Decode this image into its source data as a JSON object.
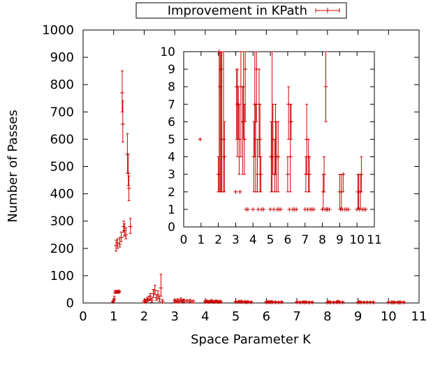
{
  "chart_data": [
    {
      "type": "scatter",
      "role": "main",
      "xlabel": "Space Parameter K",
      "ylabel": "Number of Passes",
      "xlim": [
        0,
        11
      ],
      "ylim": [
        0,
        1000
      ],
      "xticks": [
        0,
        1,
        2,
        3,
        4,
        5,
        6,
        7,
        8,
        9,
        10,
        11
      ],
      "yticks": [
        0,
        100,
        200,
        300,
        400,
        500,
        600,
        700,
        800,
        900,
        1000
      ],
      "error_bars": true,
      "legend": "top-center",
      "series": [
        {
          "name": "Improvement in KPath",
          "color": "#cc0000",
          "points": [
            [
              0.98,
              5,
              3,
              8
            ],
            [
              1.02,
              15,
              10,
              25
            ],
            [
              1.05,
              40,
              35,
              45
            ],
            [
              1.1,
              42,
              38,
              46
            ],
            [
              1.15,
              40,
              36,
              44
            ],
            [
              1.18,
              42,
              38,
              46
            ],
            [
              1.08,
              210,
              190,
              230
            ],
            [
              1.13,
              220,
              200,
              235
            ],
            [
              1.2,
              215,
              205,
              240
            ],
            [
              1.25,
              240,
              225,
              260
            ],
            [
              1.28,
              770,
              700,
              850
            ],
            [
              1.3,
              655,
              590,
              740
            ],
            [
              1.33,
              280,
              260,
              300
            ],
            [
              1.35,
              265,
              245,
              290
            ],
            [
              1.4,
              250,
              235,
              275
            ],
            [
              1.45,
              545,
              475,
              620
            ],
            [
              1.48,
              475,
              430,
              545
            ],
            [
              1.5,
              420,
              375,
              465
            ],
            [
              1.55,
              280,
              255,
              310
            ],
            [
              2.0,
              5,
              0,
              10
            ],
            [
              2.05,
              8,
              2,
              14
            ],
            [
              2.1,
              12,
              5,
              20
            ],
            [
              2.15,
              15,
              8,
              25
            ],
            [
              2.2,
              25,
              12,
              35
            ],
            [
              2.25,
              10,
              3,
              18
            ],
            [
              2.3,
              35,
              20,
              50
            ],
            [
              2.35,
              45,
              30,
              65
            ],
            [
              2.4,
              20,
              10,
              30
            ],
            [
              2.45,
              30,
              15,
              45
            ],
            [
              2.5,
              15,
              5,
              25
            ],
            [
              2.55,
              55,
              25,
              105
            ],
            [
              2.6,
              5,
              0,
              12
            ],
            [
              3.0,
              8,
              2,
              12
            ],
            [
              3.05,
              6,
              0,
              10
            ],
            [
              3.1,
              10,
              3,
              15
            ],
            [
              3.15,
              5,
              0,
              10
            ],
            [
              3.2,
              12,
              5,
              18
            ],
            [
              3.25,
              7,
              2,
              12
            ],
            [
              3.3,
              9,
              3,
              14
            ],
            [
              3.4,
              6,
              0,
              12
            ],
            [
              3.5,
              8,
              3,
              13
            ],
            [
              3.6,
              5,
              0,
              10
            ],
            [
              4.0,
              5,
              2,
              8
            ],
            [
              4.05,
              6,
              2,
              10
            ],
            [
              4.1,
              4,
              1,
              7
            ],
            [
              4.15,
              5,
              2,
              8
            ],
            [
              4.2,
              7,
              3,
              11
            ],
            [
              4.25,
              5,
              2,
              8
            ],
            [
              4.3,
              4,
              1,
              7
            ],
            [
              4.35,
              6,
              2,
              10
            ],
            [
              4.4,
              5,
              2,
              8
            ],
            [
              4.45,
              4,
              1,
              7
            ],
            [
              4.5,
              5,
              2,
              8
            ],
            [
              5.0,
              4,
              1,
              7
            ],
            [
              5.1,
              5,
              2,
              8
            ],
            [
              5.15,
              4,
              1,
              7
            ],
            [
              5.2,
              5,
              2,
              8
            ],
            [
              5.3,
              4,
              1,
              7
            ],
            [
              5.35,
              3,
              1,
              6
            ],
            [
              5.4,
              4,
              1,
              7
            ],
            [
              5.5,
              3,
              1,
              6
            ],
            [
              6.0,
              3,
              1,
              6
            ],
            [
              6.05,
              4,
              1,
              7
            ],
            [
              6.1,
              3,
              1,
              6
            ],
            [
              6.15,
              4,
              1,
              7
            ],
            [
              6.2,
              3,
              1,
              6
            ],
            [
              6.3,
              3,
              1,
              6
            ],
            [
              6.4,
              2,
              1,
              5
            ],
            [
              6.5,
              3,
              1,
              6
            ],
            [
              7.0,
              3,
              1,
              6
            ],
            [
              7.1,
              2,
              1,
              5
            ],
            [
              7.2,
              3,
              1,
              6
            ],
            [
              7.25,
              2,
              1,
              5
            ],
            [
              7.3,
              3,
              1,
              6
            ],
            [
              7.4,
              2,
              1,
              5
            ],
            [
              7.5,
              2,
              1,
              5
            ],
            [
              8.0,
              2,
              1,
              5
            ],
            [
              8.05,
              3,
              1,
              6
            ],
            [
              8.1,
              2,
              1,
              5
            ],
            [
              8.2,
              2,
              1,
              5
            ],
            [
              8.3,
              3,
              1,
              6
            ],
            [
              8.35,
              5,
              2,
              8
            ],
            [
              8.4,
              2,
              1,
              5
            ],
            [
              8.5,
              2,
              1,
              5
            ],
            [
              9.0,
              2,
              1,
              5
            ],
            [
              9.05,
              3,
              1,
              6
            ],
            [
              9.1,
              2,
              1,
              5
            ],
            [
              9.2,
              2,
              1,
              5
            ],
            [
              9.3,
              2,
              1,
              5
            ],
            [
              9.4,
              2,
              1,
              5
            ],
            [
              9.5,
              2,
              1,
              5
            ],
            [
              10.0,
              2,
              1,
              5
            ],
            [
              10.1,
              2,
              1,
              5
            ],
            [
              10.15,
              2,
              1,
              5
            ],
            [
              10.2,
              2,
              1,
              5
            ],
            [
              10.3,
              2,
              1,
              5
            ],
            [
              10.35,
              2,
              1,
              5
            ],
            [
              10.4,
              2,
              1,
              5
            ],
            [
              10.5,
              2,
              1,
              5
            ]
          ]
        }
      ]
    },
    {
      "type": "scatter",
      "role": "inset",
      "xlim": [
        0,
        11
      ],
      "ylim": [
        0,
        10
      ],
      "xticks": [
        0,
        1,
        2,
        3,
        4,
        5,
        6,
        7,
        8,
        9,
        10,
        11
      ],
      "yticks": [
        0,
        1,
        2,
        3,
        4,
        5,
        6,
        7,
        8,
        9,
        10
      ],
      "error_bars": true,
      "series": [
        {
          "name": "Improvement in KPath",
          "color": "#cc0000",
          "points": [
            [
              0.95,
              5,
              5,
              5
            ],
            [
              2.0,
              3,
              2,
              4
            ],
            [
              2.05,
              10,
              2,
              10
            ],
            [
              2.1,
              8,
              2,
              10
            ],
            [
              2.15,
              9,
              2,
              10
            ],
            [
              2.2,
              5,
              2,
              10
            ],
            [
              2.3,
              5,
              2,
              10
            ],
            [
              2.35,
              4,
              2,
              6
            ],
            [
              3.0,
              2,
              2,
              2
            ],
            [
              3.05,
              8,
              5,
              9
            ],
            [
              3.1,
              7,
              4,
              9
            ],
            [
              3.15,
              7,
              5,
              8
            ],
            [
              3.2,
              5,
              3,
              7
            ],
            [
              3.25,
              2,
              2,
              2
            ],
            [
              3.3,
              8,
              4,
              10
            ],
            [
              3.4,
              6,
              3,
              8
            ],
            [
              3.45,
              8,
              5,
              10
            ],
            [
              3.5,
              5,
              3,
              7
            ],
            [
              3.55,
              9,
              6,
              10
            ],
            [
              3.6,
              1,
              1,
              1
            ],
            [
              3.7,
              1,
              1,
              1
            ],
            [
              4.0,
              1,
              1,
              1
            ],
            [
              4.05,
              4,
              2,
              6
            ],
            [
              4.1,
              7,
              4,
              10
            ],
            [
              4.15,
              5,
              2,
              7
            ],
            [
              4.2,
              9,
              6,
              10
            ],
            [
              4.25,
              3,
              2,
              5
            ],
            [
              4.3,
              1,
              1,
              1
            ],
            [
              4.35,
              7,
              4,
              9
            ],
            [
              4.4,
              5,
              2,
              7
            ],
            [
              4.45,
              3,
              2,
              4
            ],
            [
              4.5,
              1,
              1,
              1
            ],
            [
              4.6,
              1,
              1,
              1
            ],
            [
              5.0,
              1,
              1,
              1
            ],
            [
              5.05,
              4,
              2,
              6
            ],
            [
              5.1,
              4,
              2,
              10
            ],
            [
              5.15,
              5,
              3,
              7
            ],
            [
              5.2,
              1,
              1,
              1
            ],
            [
              5.25,
              3,
              2,
              5
            ],
            [
              5.3,
              6,
              3,
              7
            ],
            [
              5.35,
              4,
              2,
              6
            ],
            [
              5.4,
              1,
              1,
              1
            ],
            [
              5.45,
              4,
              2,
              6
            ],
            [
              5.5,
              1,
              1,
              1
            ],
            [
              5.6,
              1,
              1,
              1
            ],
            [
              6.0,
              3,
              2,
              4
            ],
            [
              6.05,
              7,
              5,
              8
            ],
            [
              6.1,
              1,
              1,
              1
            ],
            [
              6.15,
              4,
              2,
              7
            ],
            [
              6.2,
              6,
              5,
              7
            ],
            [
              6.3,
              1,
              1,
              1
            ],
            [
              6.4,
              1,
              1,
              1
            ],
            [
              6.5,
              1,
              1,
              1
            ],
            [
              7.0,
              1,
              1,
              1
            ],
            [
              7.05,
              3,
              2,
              4
            ],
            [
              7.1,
              5,
              3,
              7
            ],
            [
              7.15,
              1,
              1,
              1
            ],
            [
              7.2,
              4,
              2,
              5
            ],
            [
              7.25,
              3,
              2,
              4
            ],
            [
              7.3,
              1,
              1,
              1
            ],
            [
              7.4,
              1,
              1,
              1
            ],
            [
              7.5,
              1,
              1,
              1
            ],
            [
              8.0,
              1,
              1,
              1
            ],
            [
              8.05,
              2,
              1,
              3
            ],
            [
              8.1,
              3,
              2,
              4
            ],
            [
              8.15,
              1,
              1,
              1
            ],
            [
              8.2,
              8,
              6,
              10
            ],
            [
              8.25,
              1,
              1,
              1
            ],
            [
              8.3,
              1,
              1,
              1
            ],
            [
              8.4,
              1,
              1,
              1
            ],
            [
              9.0,
              2,
              1,
              3
            ],
            [
              9.05,
              1,
              1,
              1
            ],
            [
              9.1,
              2,
              1,
              3
            ],
            [
              9.15,
              1,
              1,
              1
            ],
            [
              9.2,
              3,
              2,
              3
            ],
            [
              9.3,
              1,
              1,
              1
            ],
            [
              9.4,
              1,
              1,
              1
            ],
            [
              9.5,
              1,
              1,
              1
            ],
            [
              10.0,
              1,
              1,
              1
            ],
            [
              10.05,
              2,
              1,
              3
            ],
            [
              10.1,
              2,
              1,
              3
            ],
            [
              10.15,
              1,
              1,
              1
            ],
            [
              10.2,
              2,
              1,
              3
            ],
            [
              10.25,
              3,
              2,
              4
            ],
            [
              10.3,
              1,
              1,
              1
            ],
            [
              10.4,
              1,
              1,
              1
            ],
            [
              10.5,
              1,
              1,
              1
            ]
          ]
        }
      ]
    }
  ]
}
